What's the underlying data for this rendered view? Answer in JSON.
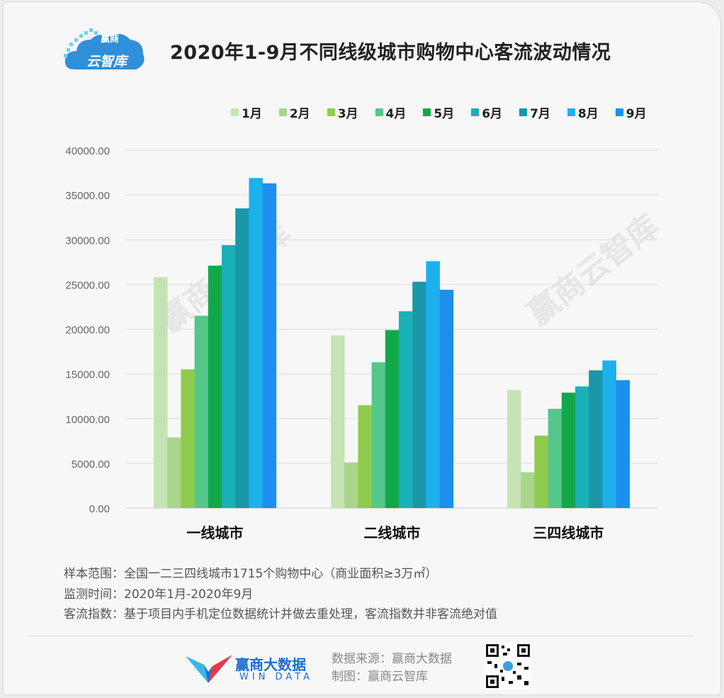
{
  "header": {
    "title": "2020年1-9月不同线级城市购物中心客流波动情况",
    "logo_line1": "赢商",
    "logo_line2": "云智库"
  },
  "chart_data": {
    "type": "bar",
    "categories": [
      "一线城市",
      "二线城市",
      "三四线城市"
    ],
    "series": [
      {
        "name": "1月",
        "color": "#c5e3b4",
        "values": [
          25800,
          19300,
          13200
        ]
      },
      {
        "name": "2月",
        "color": "#a9d58d",
        "values": [
          7900,
          5100,
          4000
        ]
      },
      {
        "name": "3月",
        "color": "#8fcb4d",
        "values": [
          15500,
          11500,
          8100
        ]
      },
      {
        "name": "4月",
        "color": "#55c78b",
        "values": [
          21500,
          16300,
          11100
        ]
      },
      {
        "name": "5月",
        "color": "#12a84a",
        "values": [
          27100,
          19900,
          12900
        ]
      },
      {
        "name": "6月",
        "color": "#19b0b8",
        "values": [
          29400,
          22000,
          13600
        ]
      },
      {
        "name": "7月",
        "color": "#1a97a8",
        "values": [
          33500,
          25300,
          15400
        ]
      },
      {
        "name": "8月",
        "color": "#1cb0ec",
        "values": [
          36900,
          27600,
          16500
        ]
      },
      {
        "name": "9月",
        "color": "#1d8ff0",
        "values": [
          36300,
          24400,
          14300
        ]
      }
    ],
    "ylim": [
      0,
      40000
    ],
    "yticks": [
      "0.00",
      "5000.00",
      "10000.00",
      "15000.00",
      "20000.00",
      "25000.00",
      "30000.00",
      "35000.00",
      "40000.00"
    ],
    "grid": true,
    "legend_position": "top"
  },
  "notes": [
    "样本范围：全国一二三四线城市1715个购物中心（商业面积≥3万㎡）",
    "监测时间：2020年1月-2020年9月",
    "客流指数：基于项目内手机定位数据统计并做去重处理，客流指数并非客流绝对值"
  ],
  "footer": {
    "brand": "赢商大数据",
    "brand_sub": "WIN DATA",
    "source": "数据来源：赢商大数据",
    "made_by": "制图：赢商云智库"
  },
  "watermark": "赢商云智库"
}
